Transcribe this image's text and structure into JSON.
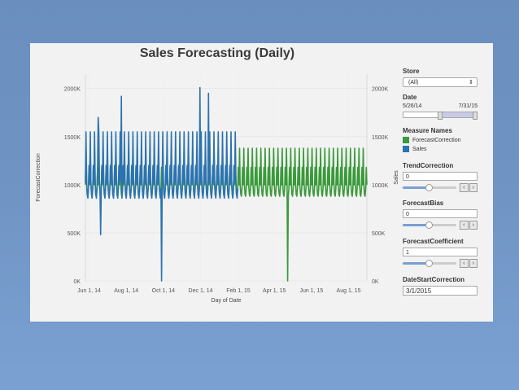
{
  "title": "Sales Forecasting (Daily)",
  "colors": {
    "forecast": "#3a9a3a",
    "sales": "#2b73b0"
  },
  "chart_data": {
    "type": "line",
    "xlabel": "Day of Date",
    "ylabel_left": "ForecastCorrection",
    "ylabel_right": "Sales",
    "y_ticks": [
      "0K",
      "500K",
      "1000K",
      "1500K",
      "2000K"
    ],
    "x_ticks": [
      "Jun 1, 14",
      "Aug 1, 14",
      "Oct 1, 14",
      "Dec 1, 14",
      "Feb 1, 15",
      "Apr 1, 15",
      "Jun 1, 15",
      "Aug 1, 15"
    ],
    "ylim": [
      0,
      2150
    ],
    "x_start": "May 26, 2014",
    "x_end": "Aug 31, 2015",
    "units": "thousands",
    "series": [
      {
        "name": "ForecastCorrection",
        "color": "#3a9a3a",
        "weekly_pattern_k": [
          1000,
          1380,
          1000,
          900,
          880,
          960,
          1180
        ],
        "dips": [
          {
            "date": "2015-04-23",
            "value_k": 0
          }
        ]
      },
      {
        "name": "Sales",
        "color": "#2b73b0",
        "weekly_pattern_k": [
          1020,
          1550,
          1050,
          900,
          860,
          960,
          1200
        ],
        "end": "2015-01-31",
        "spikes": [
          {
            "date": "2014-06-16",
            "value_k": 1700
          },
          {
            "date": "2014-07-24",
            "value_k": 1920
          },
          {
            "date": "2014-11-30",
            "value_k": 2010
          },
          {
            "date": "2014-12-14",
            "value_k": 1950
          }
        ],
        "dips": [
          {
            "date": "2014-06-20",
            "value_k": 480
          },
          {
            "date": "2014-09-28",
            "value_k": 0
          }
        ]
      }
    ]
  },
  "sidebar": {
    "store": {
      "label": "Store",
      "value": "(All)"
    },
    "date": {
      "label": "Date",
      "start": "5/26/14",
      "end": "7/31/15",
      "range_start": 0.47,
      "range_end": 1.0
    },
    "measure_names": {
      "label": "Measure Names",
      "items": [
        "ForecastCorrection",
        "Sales"
      ]
    },
    "trend": {
      "label": "TrendCorrection",
      "value": "0",
      "level": 0.45
    },
    "bias": {
      "label": "ForecastBias",
      "value": "0",
      "level": 0.45
    },
    "coef": {
      "label": "ForecastCoefficient",
      "value": "1",
      "level": 0.45
    },
    "start_corr": {
      "label": "DateStartCorrection",
      "value": "3/1/2015"
    }
  }
}
